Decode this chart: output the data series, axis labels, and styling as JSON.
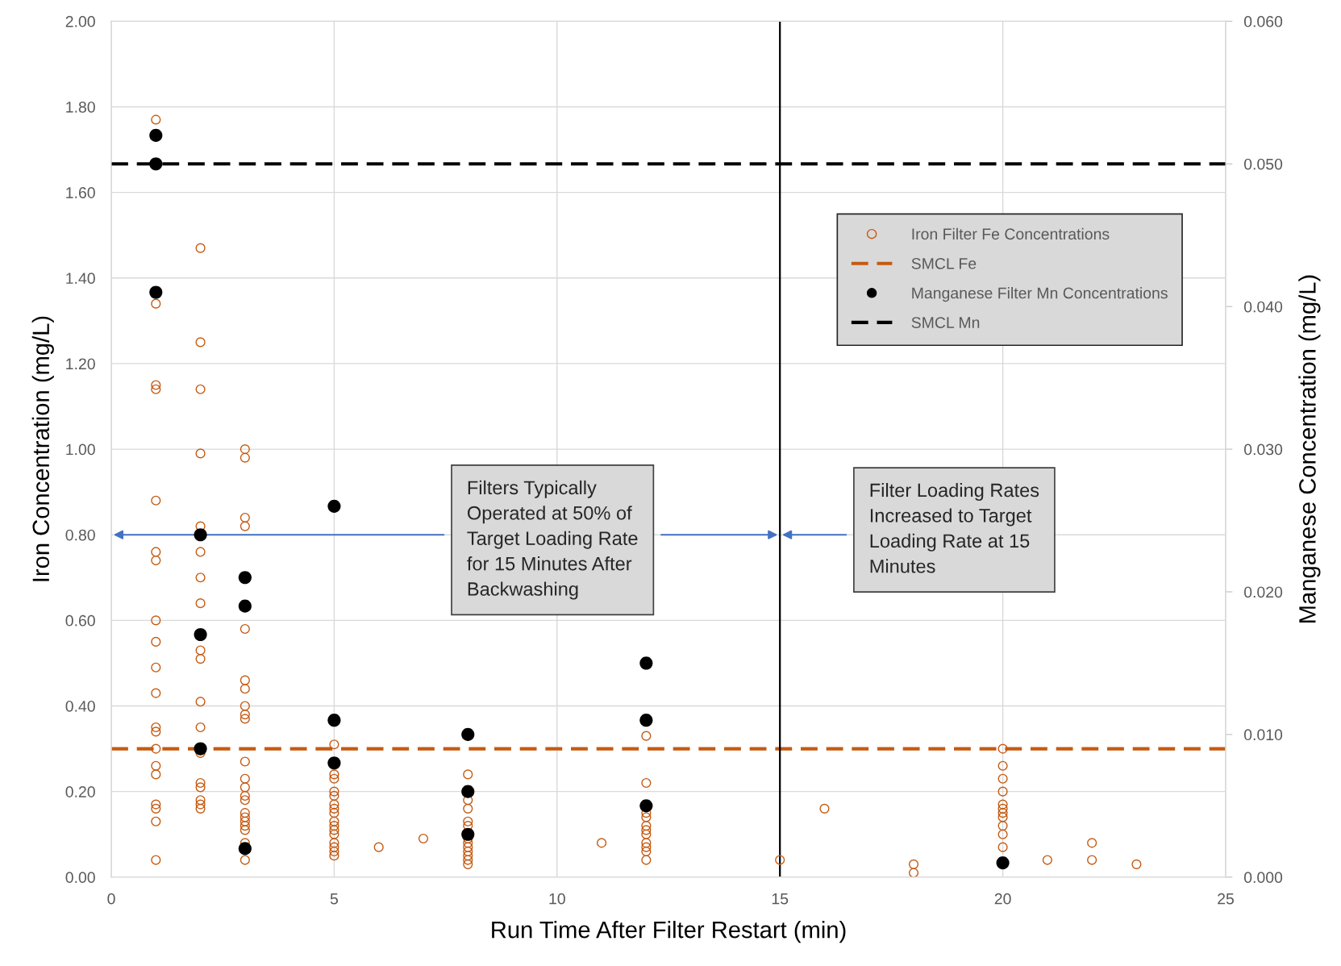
{
  "chart_data": {
    "type": "scatter",
    "xlabel": "Run Time After Filter Restart (min)",
    "ylabel": "Iron Concentration (mg/L)",
    "y2label": "Manganese Concentration (mg/L)",
    "xlim": [
      0,
      25
    ],
    "xticks": [
      0,
      5,
      10,
      15,
      20,
      25
    ],
    "ylim": [
      0,
      2.0
    ],
    "yticks": [
      {
        "value": 0,
        "label": "0.00"
      },
      {
        "value": 0.2,
        "label": "0.20"
      },
      {
        "value": 0.4,
        "label": "0.40"
      },
      {
        "value": 0.6,
        "label": "0.60"
      },
      {
        "value": 0.8,
        "label": "0.80"
      },
      {
        "value": 1.0,
        "label": "1.00"
      },
      {
        "value": 1.2,
        "label": "1.20"
      },
      {
        "value": 1.4,
        "label": "1.40"
      },
      {
        "value": 1.6,
        "label": "1.60"
      },
      {
        "value": 1.8,
        "label": "1.80"
      },
      {
        "value": 2.0,
        "label": "2.00"
      }
    ],
    "y2lim": [
      0,
      0.06
    ],
    "y2ticks": [
      {
        "value": 0,
        "label": "0.000"
      },
      {
        "value": 0.01,
        "label": "0.010"
      },
      {
        "value": 0.02,
        "label": "0.020"
      },
      {
        "value": 0.03,
        "label": "0.030"
      },
      {
        "value": 0.04,
        "label": "0.040"
      },
      {
        "value": 0.05,
        "label": "0.050"
      },
      {
        "value": 0.06,
        "label": "0.060"
      }
    ],
    "grid": true,
    "legend": "top right",
    "series": [
      {
        "name": "Iron Filter Fe Concentrations",
        "color": "#c55a11",
        "marker": "circle",
        "x": [
          1,
          1,
          1,
          1,
          1,
          1,
          1,
          1,
          1,
          1,
          1,
          1,
          1,
          1,
          1,
          1,
          1,
          1,
          1,
          1,
          2,
          2,
          2,
          2,
          2,
          2,
          2,
          2,
          2,
          2,
          2,
          2,
          2,
          2,
          2,
          2,
          2,
          2,
          3,
          3,
          3,
          3,
          3,
          3,
          3,
          3,
          3,
          3,
          3,
          3,
          3,
          3,
          3,
          3,
          3,
          3,
          3,
          3,
          3,
          3,
          5,
          5,
          5,
          5,
          5,
          5,
          5,
          5,
          5,
          5,
          5,
          5,
          5,
          5,
          5,
          5,
          6,
          7,
          8,
          8,
          8,
          8,
          8,
          8,
          8,
          8,
          8,
          8,
          8,
          8,
          11,
          12,
          12,
          12,
          12,
          12,
          12,
          12,
          12,
          12,
          12,
          12,
          15,
          16,
          18,
          18,
          20,
          20,
          20,
          20,
          20,
          20,
          20,
          20,
          20,
          20,
          20,
          21,
          22,
          22,
          23
        ],
        "values": [
          1.77,
          1.34,
          1.15,
          1.14,
          0.88,
          0.76,
          0.74,
          0.6,
          0.55,
          0.49,
          0.43,
          0.35,
          0.34,
          0.3,
          0.26,
          0.24,
          0.17,
          0.16,
          0.13,
          0.04,
          1.47,
          1.25,
          1.14,
          0.99,
          0.82,
          0.76,
          0.7,
          0.64,
          0.53,
          0.51,
          0.41,
          0.35,
          0.29,
          0.22,
          0.21,
          0.18,
          0.17,
          0.16,
          1.0,
          0.98,
          0.84,
          0.82,
          0.58,
          0.46,
          0.44,
          0.4,
          0.38,
          0.37,
          0.27,
          0.23,
          0.21,
          0.19,
          0.18,
          0.15,
          0.14,
          0.13,
          0.12,
          0.11,
          0.08,
          0.04,
          0.31,
          0.24,
          0.23,
          0.2,
          0.19,
          0.17,
          0.16,
          0.15,
          0.13,
          0.12,
          0.11,
          0.1,
          0.08,
          0.07,
          0.06,
          0.05,
          0.07,
          0.09,
          0.24,
          0.18,
          0.16,
          0.13,
          0.12,
          0.09,
          0.08,
          0.07,
          0.06,
          0.05,
          0.04,
          0.03,
          0.08,
          0.33,
          0.22,
          0.15,
          0.14,
          0.12,
          0.11,
          0.1,
          0.08,
          0.07,
          0.06,
          0.04,
          0.04,
          0.16,
          0.03,
          0.01,
          0.3,
          0.26,
          0.23,
          0.2,
          0.17,
          0.16,
          0.15,
          0.14,
          0.12,
          0.1,
          0.07,
          0.04,
          0.08,
          0.04,
          0.03
        ]
      },
      {
        "name": "SMCL Fe",
        "type": "line",
        "color": "#c55a11",
        "marker": "none",
        "line_style": "dashed",
        "x": [
          0,
          25
        ],
        "values": [
          0.3,
          0.3
        ]
      },
      {
        "name": "Manganese Filter Mn Concentrations",
        "color": "#000000",
        "marker": "circle",
        "axis": "y2",
        "x": [
          1,
          1,
          1,
          2,
          2,
          2,
          3,
          3,
          3,
          5,
          5,
          5,
          8,
          8,
          8,
          12,
          12,
          12,
          20
        ],
        "values": [
          0.052,
          0.05,
          0.041,
          0.024,
          0.017,
          0.009,
          0.021,
          0.019,
          0.002,
          0.026,
          0.011,
          0.008,
          0.01,
          0.006,
          0.003,
          0.015,
          0.011,
          0.005,
          0.001
        ]
      },
      {
        "name": "SMCL Mn",
        "type": "line",
        "color": "#000000",
        "marker": "none",
        "line_style": "dashed",
        "axis": "y2",
        "x": [
          0,
          25
        ],
        "values": [
          0.05,
          0.05
        ]
      }
    ],
    "ref_lines": [
      {
        "axis": "x",
        "value": 15,
        "color": "#000000",
        "line_style": "solid"
      }
    ],
    "annotations": [
      "Filters Typically\nOperated at 50% of\nTarget Loading Rate\nfor 15 Minutes After\nBackwashing",
      "Filter Loading Rates\nIncreased to Target\nLoading Rate at 15\nMinutes"
    ]
  }
}
